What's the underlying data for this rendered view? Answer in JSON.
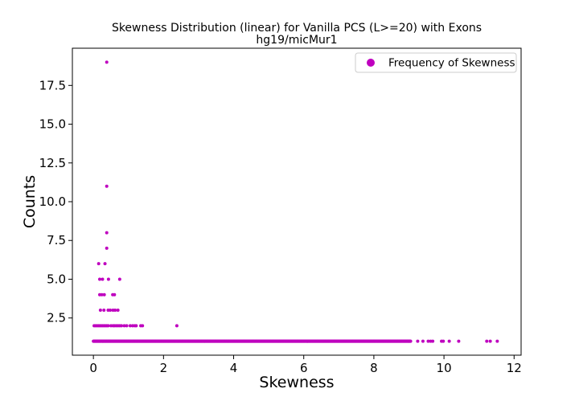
{
  "chart_data": {
    "type": "scatter",
    "title": "Skewness Distribution (linear) for Vanilla PCS (L>=20) with Exons",
    "subtitle": "hg19/micMur1",
    "xlabel": "Skewness",
    "ylabel": "Counts",
    "xlim": [
      -0.6,
      12.2
    ],
    "ylim": [
      0.1,
      19.9
    ],
    "xticks": [
      0,
      2,
      4,
      6,
      8,
      10,
      12
    ],
    "xtick_labels": [
      "0",
      "2",
      "4",
      "6",
      "8",
      "10",
      "12"
    ],
    "yticks": [
      2.5,
      5.0,
      7.5,
      10.0,
      12.5,
      15.0,
      17.5
    ],
    "ytick_labels": [
      "2.5",
      "5.0",
      "7.5",
      "10.0",
      "12.5",
      "15.0",
      "17.5"
    ],
    "grid": false,
    "legend": {
      "position": "top-right",
      "entries": [
        "Frequency of Skewness"
      ]
    },
    "color": "#bf00bf",
    "series": [
      {
        "name": "Frequency of Skewness",
        "points": [
          [
            0.38,
            19
          ],
          [
            0.38,
            11
          ],
          [
            0.38,
            8
          ],
          [
            0.38,
            7
          ],
          [
            0.15,
            6
          ],
          [
            0.33,
            6
          ],
          [
            0.18,
            5
          ],
          [
            0.26,
            5
          ],
          [
            0.43,
            5
          ],
          [
            0.75,
            5
          ],
          [
            0.18,
            4
          ],
          [
            0.24,
            4
          ],
          [
            0.31,
            4
          ],
          [
            0.55,
            4
          ],
          [
            0.6,
            4
          ],
          [
            0.2,
            3
          ],
          [
            0.3,
            3
          ],
          [
            0.42,
            3
          ],
          [
            0.48,
            3
          ],
          [
            0.56,
            3
          ],
          [
            0.62,
            3
          ],
          [
            0.7,
            3
          ],
          [
            0.02,
            2
          ],
          [
            0.06,
            2
          ],
          [
            0.1,
            2
          ],
          [
            0.14,
            2
          ],
          [
            0.18,
            2
          ],
          [
            0.22,
            2
          ],
          [
            0.26,
            2
          ],
          [
            0.3,
            2
          ],
          [
            0.34,
            2
          ],
          [
            0.38,
            2
          ],
          [
            0.42,
            2
          ],
          [
            0.5,
            2
          ],
          [
            0.56,
            2
          ],
          [
            0.6,
            2
          ],
          [
            0.65,
            2
          ],
          [
            0.7,
            2
          ],
          [
            0.75,
            2
          ],
          [
            0.8,
            2
          ],
          [
            0.88,
            2
          ],
          [
            0.95,
            2
          ],
          [
            1.05,
            2
          ],
          [
            1.12,
            2
          ],
          [
            1.18,
            2
          ],
          [
            1.22,
            2
          ],
          [
            1.35,
            2
          ],
          [
            1.4,
            2
          ],
          [
            2.38,
            2
          ],
          [
            9.25,
            1
          ],
          [
            9.4,
            1
          ],
          [
            9.55,
            1
          ],
          [
            9.62,
            1
          ],
          [
            9.68,
            1
          ],
          [
            9.93,
            1
          ],
          [
            9.98,
            1
          ],
          [
            10.15,
            1
          ],
          [
            10.42,
            1
          ],
          [
            11.22,
            1
          ],
          [
            11.32,
            1
          ],
          [
            11.52,
            1
          ]
        ],
        "dense_runs": [
          {
            "y": 1,
            "x_from": 0.0,
            "x_to": 9.05,
            "step": 0.012
          }
        ]
      }
    ]
  }
}
